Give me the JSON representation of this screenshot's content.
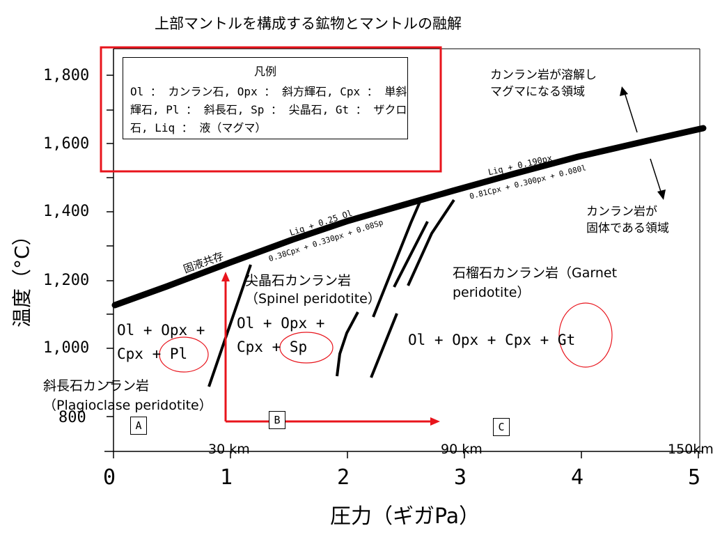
{
  "title": "上部マントルを構成する鉱物とマントルの融解",
  "axes": {
    "y_label": "温度（°C）",
    "x_label": "圧力（ギガPa）",
    "y_ticks": [
      "1,800",
      "1,600",
      "1,400",
      "1,200",
      "1,000",
      "800"
    ],
    "x_ticks": [
      "0",
      "1",
      "2",
      "3",
      "4",
      "5"
    ]
  },
  "legend": {
    "title": "凡例",
    "text": "Ol ： カンラン石, Opx ： 斜方輝石, Cpx ： 単斜輝石, Pl ： 斜長石, Sp ： 尖晶石, Gt ： ザクロ石, Liq ： 液（マグマ）"
  },
  "curve_labels": {
    "solidus": "固液共存",
    "liq1": "Liq + 0.25 Ol",
    "liq1b": "0.38Cpx + 0.330px + 0.08Sp",
    "liq2": "Liq + 0.190px",
    "liq2b": "0.81Cpx + 0.300px + 0.080l"
  },
  "regions": {
    "plag_a": "Ol + Opx +",
    "plag_b": "Cpx + Pl",
    "spinel_a": "Ol + Opx +",
    "spinel_b": "Cpx + Sp",
    "garnet": "Ol + Opx + Cpx + Gt"
  },
  "annotations": {
    "melt": "カンラン岩が溶解し\nマグマになる領域",
    "solid": "カンラン岩が\n固体である領域",
    "spinel_peridotite": "尖晶石カンラン岩\n（Spinel peridotite）",
    "garnet_peridotite": "石榴石カンラン岩（Garnet\nperidotite）",
    "plagioclase_peridotite": "斜長石カンラン岩\n（Plagioclase peridotite）"
  },
  "box_labels": [
    "A",
    "B",
    "C"
  ],
  "depths": [
    "30 km",
    "90 km",
    "150km"
  ],
  "colors": {
    "highlight": "#e8141c",
    "ink": "#000000"
  }
}
